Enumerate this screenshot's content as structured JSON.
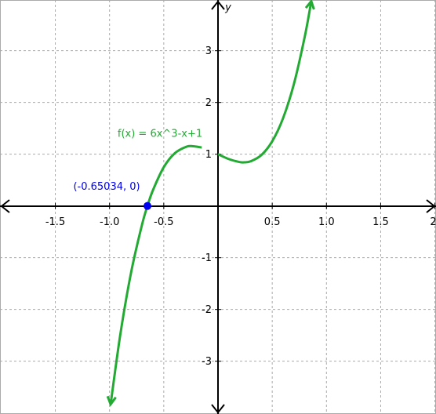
{
  "chart_data": {
    "type": "line",
    "title": "f(x) = 6x^3-x+1",
    "y_label": "y",
    "x": [
      -0.99,
      -0.9,
      -0.8,
      -0.7,
      -0.65,
      -0.6,
      -0.5,
      -0.4,
      -0.3,
      -0.24,
      -0.15,
      -0.07,
      0,
      0.1,
      0.2,
      0.24,
      0.3,
      0.4,
      0.5,
      0.6,
      0.7,
      0.8,
      0.86
    ],
    "series": [
      {
        "name": "f(x) = 6x^3-x+1",
        "color": "#22aa33",
        "values": [
          -3.832,
          -2.474,
          -1.272,
          -0.358,
          0.002,
          0.304,
          0.75,
          1.016,
          1.138,
          1.157,
          1.13,
          null,
          1,
          0.906,
          0.848,
          0.843,
          0.862,
          0.984,
          1.25,
          1.696,
          2.358,
          3.272,
          3.956
        ]
      }
    ],
    "point": {
      "x": -0.65034,
      "y": 0,
      "label": "(-0.65034, 0)",
      "color": "#0000ee"
    },
    "xlim": [
      -2.01,
      2.01
    ],
    "ylim": [
      -4.02,
      3.98
    ],
    "xticks": [
      {
        "value": -1.5,
        "label": "-1.5"
      },
      {
        "value": -1,
        "label": "-1.0"
      },
      {
        "value": -0.5,
        "label": "-0.5"
      },
      {
        "value": 0.5,
        "label": "0.5"
      },
      {
        "value": 1,
        "label": "1.0"
      },
      {
        "value": 1.5,
        "label": "1.5"
      },
      {
        "value": 2,
        "label": "2."
      }
    ],
    "yticks": [
      -3,
      -2,
      -1,
      1,
      2,
      3
    ],
    "grid": true
  }
}
